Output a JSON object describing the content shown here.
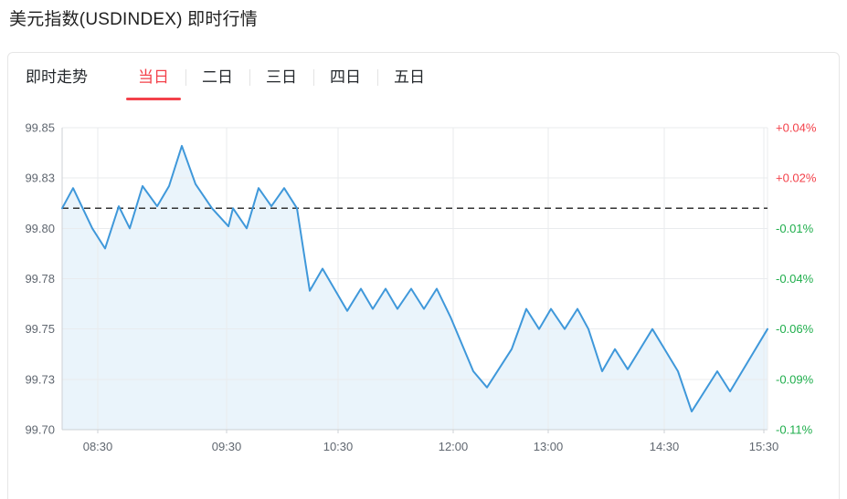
{
  "page": {
    "title": "美元指数(USDINDEX) 即时行情"
  },
  "toolbar": {
    "label": "即时走势",
    "tabs": [
      {
        "label": "当日",
        "active": true
      },
      {
        "label": "二日",
        "active": false
      },
      {
        "label": "三日",
        "active": false
      },
      {
        "label": "四日",
        "active": false
      },
      {
        "label": "五日",
        "active": false
      }
    ]
  },
  "chart_data": {
    "type": "area",
    "title": "美元指数(USDINDEX) 即时行情",
    "legend": "USDINDEX",
    "grid": true,
    "prev_close": 99.81,
    "last_value": 99.75,
    "change_pct": "-0.06%",
    "ylim": [
      99.7,
      99.85
    ],
    "y_axis_left": {
      "labels": [
        "99.85",
        "99.83",
        "99.80",
        "99.78",
        "99.75",
        "99.73",
        "99.70"
      ],
      "values": [
        99.85,
        99.825,
        99.8,
        99.775,
        99.75,
        99.725,
        99.7
      ]
    },
    "y_axis_right": {
      "labels": [
        "+0.04%",
        "+0.02%",
        "-0.01%",
        "-0.04%",
        "-0.06%",
        "-0.09%",
        "-0.11%"
      ]
    },
    "x_axis": {
      "labels": [
        "08:30",
        "09:30",
        "10:30",
        "12:00",
        "13:00",
        "14:30",
        "15:30"
      ],
      "positions": [
        0.0505,
        0.2332,
        0.3912,
        0.5544,
        0.6891,
        0.8536,
        0.9948
      ]
    },
    "series": [
      {
        "name": "USDINDEX",
        "points": [
          [
            0.0,
            99.81
          ],
          [
            0.0155,
            99.82
          ],
          [
            0.0427,
            99.8
          ],
          [
            0.0609,
            99.79
          ],
          [
            0.0803,
            99.811
          ],
          [
            0.0959,
            99.8
          ],
          [
            0.114,
            99.821
          ],
          [
            0.1347,
            99.811
          ],
          [
            0.1516,
            99.821
          ],
          [
            0.1697,
            99.841
          ],
          [
            0.1891,
            99.822
          ],
          [
            0.2124,
            99.81
          ],
          [
            0.2358,
            99.801
          ],
          [
            0.2422,
            99.81
          ],
          [
            0.2617,
            99.8
          ],
          [
            0.2785,
            99.82
          ],
          [
            0.2966,
            99.811
          ],
          [
            0.3148,
            99.82
          ],
          [
            0.3329,
            99.81
          ],
          [
            0.351,
            99.769
          ],
          [
            0.3692,
            99.78
          ],
          [
            0.4041,
            99.759
          ],
          [
            0.4236,
            99.77
          ],
          [
            0.4404,
            99.76
          ],
          [
            0.4585,
            99.77
          ],
          [
            0.4754,
            99.76
          ],
          [
            0.4948,
            99.77
          ],
          [
            0.513,
            99.76
          ],
          [
            0.5311,
            99.77
          ],
          [
            0.5505,
            99.756
          ],
          [
            0.5829,
            99.729
          ],
          [
            0.6023,
            99.721
          ],
          [
            0.6373,
            99.74
          ],
          [
            0.658,
            99.76
          ],
          [
            0.6762,
            99.75
          ],
          [
            0.693,
            99.76
          ],
          [
            0.7124,
            99.75
          ],
          [
            0.7306,
            99.76
          ],
          [
            0.7461,
            99.75
          ],
          [
            0.7655,
            99.729
          ],
          [
            0.7837,
            99.74
          ],
          [
            0.8018,
            99.73
          ],
          [
            0.8368,
            99.75
          ],
          [
            0.8575,
            99.738
          ],
          [
            0.8731,
            99.729
          ],
          [
            0.8925,
            99.709
          ],
          [
            0.9288,
            99.729
          ],
          [
            0.9469,
            99.719
          ],
          [
            1.0,
            99.75
          ]
        ]
      }
    ],
    "colors": {
      "line": "#3f98da",
      "fill": "#eaf4fb",
      "up": "#f3414a",
      "down": "#1fae4c",
      "dashed": "#333333",
      "grid": "#e9ebee",
      "axis": "#ccd0d4",
      "tick_text": "#606770"
    }
  }
}
